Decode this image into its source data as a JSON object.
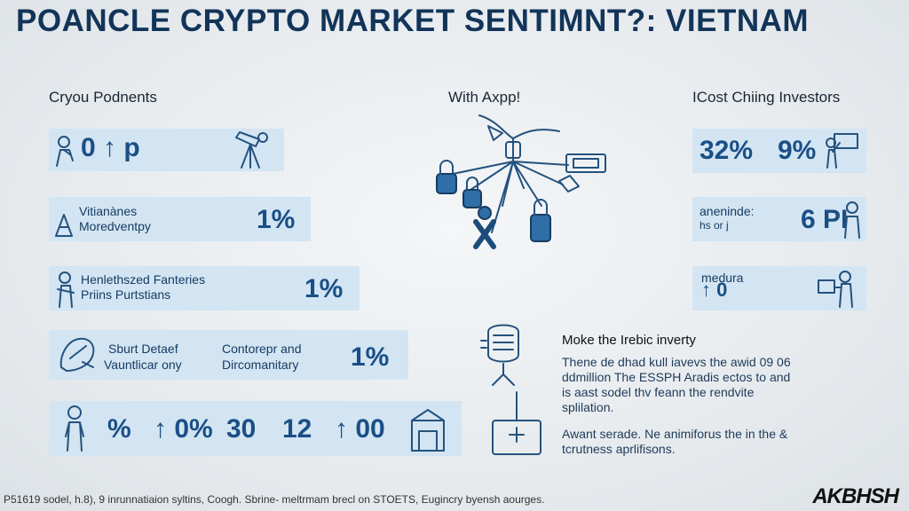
{
  "title": "POANCLE CRYPTO MARKET SENTIMNT?: VIETNAM",
  "columns": {
    "left": "Cryou Podnents",
    "center": "With Axpp!",
    "right": "ICost Chiing Investors"
  },
  "left_panels": {
    "p1": {
      "big": "0 ↑ p"
    },
    "p2": {
      "line1": "Vitianànes",
      "line2": "Moredventpy",
      "big": "1%"
    },
    "p3": {
      "line1": "Henlethszed Fanteries",
      "line2": "Priins Purtstians",
      "big": "1%"
    },
    "p4": {
      "line1": "Sburt Detaef",
      "line2": "Vauntlicar ony",
      "line3": "Contorepr and",
      "line4": "Dircomanitary",
      "big": "1%"
    },
    "p5": {
      "values": [
        "%",
        "↑ 0%",
        "30",
        "12",
        "↑ 00"
      ]
    }
  },
  "right_panels": {
    "r1": {
      "v1": "32%",
      "v2": "9%"
    },
    "r2": {
      "line1": "aneninde:",
      "line2": "hs or j",
      "big": "6 PI"
    },
    "r3": {
      "line1": "medura",
      "big": "↑ 0"
    }
  },
  "info": {
    "title": "Moke the Irebic inverty",
    "p1": "Thene de dhad kull iavevs the awid 09 06 ddmillion The ESSPH Aradis ectos to and is aast sodel thv feann the rendvite splilation.",
    "p2": "Awant serade. Ne animiforus the in the & tcrutness aprlifisons."
  },
  "footer": "P51619 sodel, h.8), 9 inrunnatiaion syltins, Coogh. Sbrine- meltrmam brecl on STOETS, Eugincry byensh aourges.",
  "logo": "AKBHSH",
  "colors": {
    "panel": "#d3e5f2",
    "accent": "#1a4f86",
    "ink": "#24527e"
  }
}
